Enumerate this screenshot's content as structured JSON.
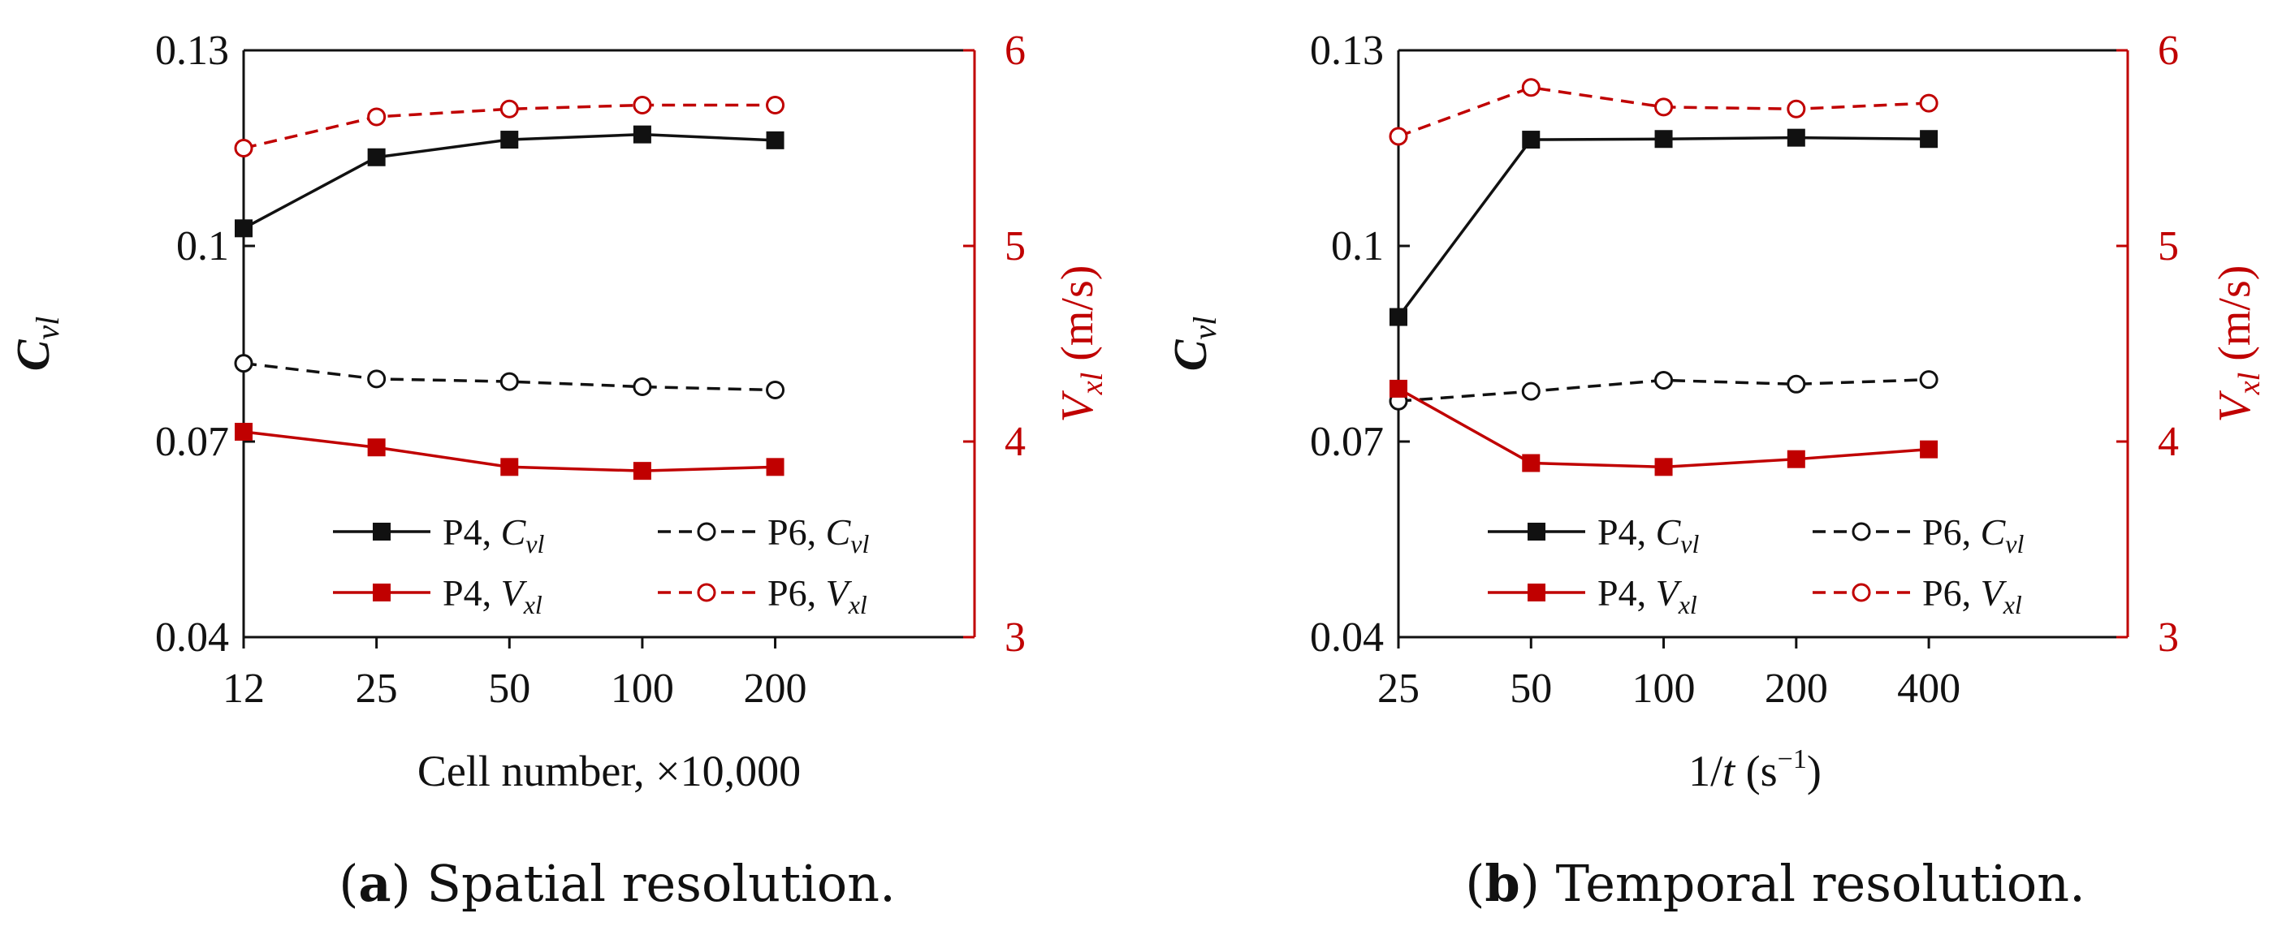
{
  "colors": {
    "black": "#111111",
    "red": "#c00000",
    "axis_right": "#c00000"
  },
  "chart_data": [
    {
      "type": "line",
      "panel_label": "a",
      "caption": "Spatial resolution.",
      "categories": [
        "12",
        "25",
        "50",
        "100",
        "200"
      ],
      "xlabel": "Cell number, ×10,000",
      "ylabel_left": {
        "main": "C",
        "sub": "vl"
      },
      "ylabel_right": {
        "main": "V",
        "sub": "xl",
        "unit": " (m/s)"
      },
      "ylim_left": [
        0.04,
        0.13
      ],
      "yticks_left": [
        "0.04",
        "0.07",
        "0.1",
        "0.13"
      ],
      "yticks_left_values": [
        0.04,
        0.07,
        0.1,
        0.13
      ],
      "ylim_right": [
        3,
        6
      ],
      "yticks_right": [
        "3",
        "4",
        "5",
        "6"
      ],
      "yticks_right_values": [
        3,
        4,
        5,
        6
      ],
      "series": [
        {
          "name": "P4, Cvl",
          "legend": {
            "main": "P4, ",
            "it": "C",
            "sub": "vl"
          },
          "axis": "left",
          "color": "#111111",
          "dash": false,
          "marker": "square",
          "values": [
            0.1027,
            0.1136,
            0.1163,
            0.1171,
            0.1162
          ]
        },
        {
          "name": "P6, Cvl",
          "legend": {
            "main": "P6, ",
            "it": "C",
            "sub": "vl"
          },
          "axis": "left",
          "color": "#111111",
          "dash": true,
          "marker": "circle",
          "values": [
            0.082,
            0.0796,
            0.0792,
            0.0784,
            0.0779
          ]
        },
        {
          "name": "P4, Vxl",
          "legend": {
            "main": "P4, ",
            "it": "V",
            "sub": "xl"
          },
          "axis": "right",
          "color": "#c00000",
          "dash": false,
          "marker": "square",
          "values": [
            4.05,
            3.97,
            3.87,
            3.85,
            3.87
          ]
        },
        {
          "name": "P6, Vxl",
          "legend": {
            "main": "P6, ",
            "it": "V",
            "sub": "xl"
          },
          "axis": "right",
          "color": "#c00000",
          "dash": true,
          "marker": "circle",
          "values": [
            5.5,
            5.66,
            5.7,
            5.72,
            5.72
          ]
        }
      ]
    },
    {
      "type": "line",
      "panel_label": "b",
      "caption": "Temporal resolution.",
      "categories": [
        "25",
        "50",
        "100",
        "200",
        "400"
      ],
      "xlabel": {
        "pre": "1/",
        "it": "t",
        "post": "  (s",
        "sup": "−1",
        "end": ")"
      },
      "ylabel_left": {
        "main": "C",
        "sub": "vl"
      },
      "ylabel_right": {
        "main": "V",
        "sub": "xl",
        "unit": " (m/s)"
      },
      "ylim_left": [
        0.04,
        0.13
      ],
      "yticks_left": [
        "0.04",
        "0.07",
        "0.1",
        "0.13"
      ],
      "yticks_left_values": [
        0.04,
        0.07,
        0.1,
        0.13
      ],
      "ylim_right": [
        3,
        6
      ],
      "yticks_right": [
        "3",
        "4",
        "5",
        "6"
      ],
      "yticks_right_values": [
        3,
        4,
        5,
        6
      ],
      "series": [
        {
          "name": "P4, Cvl",
          "legend": {
            "main": "P4, ",
            "it": "C",
            "sub": "vl"
          },
          "axis": "left",
          "color": "#111111",
          "dash": false,
          "marker": "square",
          "values": [
            0.0891,
            0.1163,
            0.1164,
            0.1166,
            0.1164
          ]
        },
        {
          "name": "P6, Cvl",
          "legend": {
            "main": "P6, ",
            "it": "C",
            "sub": "vl"
          },
          "axis": "left",
          "color": "#111111",
          "dash": true,
          "marker": "circle",
          "values": [
            0.0762,
            0.0777,
            0.0794,
            0.0788,
            0.0795
          ]
        },
        {
          "name": "P4, Vxl",
          "legend": {
            "main": "P4, ",
            "it": "V",
            "sub": "xl"
          },
          "axis": "right",
          "color": "#c00000",
          "dash": false,
          "marker": "square",
          "values": [
            4.27,
            3.89,
            3.87,
            3.91,
            3.96
          ]
        },
        {
          "name": "P6, Vxl",
          "legend": {
            "main": "P6, ",
            "it": "V",
            "sub": "xl"
          },
          "axis": "right",
          "color": "#c00000",
          "dash": true,
          "marker": "circle",
          "values": [
            5.56,
            5.81,
            5.71,
            5.7,
            5.73
          ]
        }
      ]
    }
  ]
}
